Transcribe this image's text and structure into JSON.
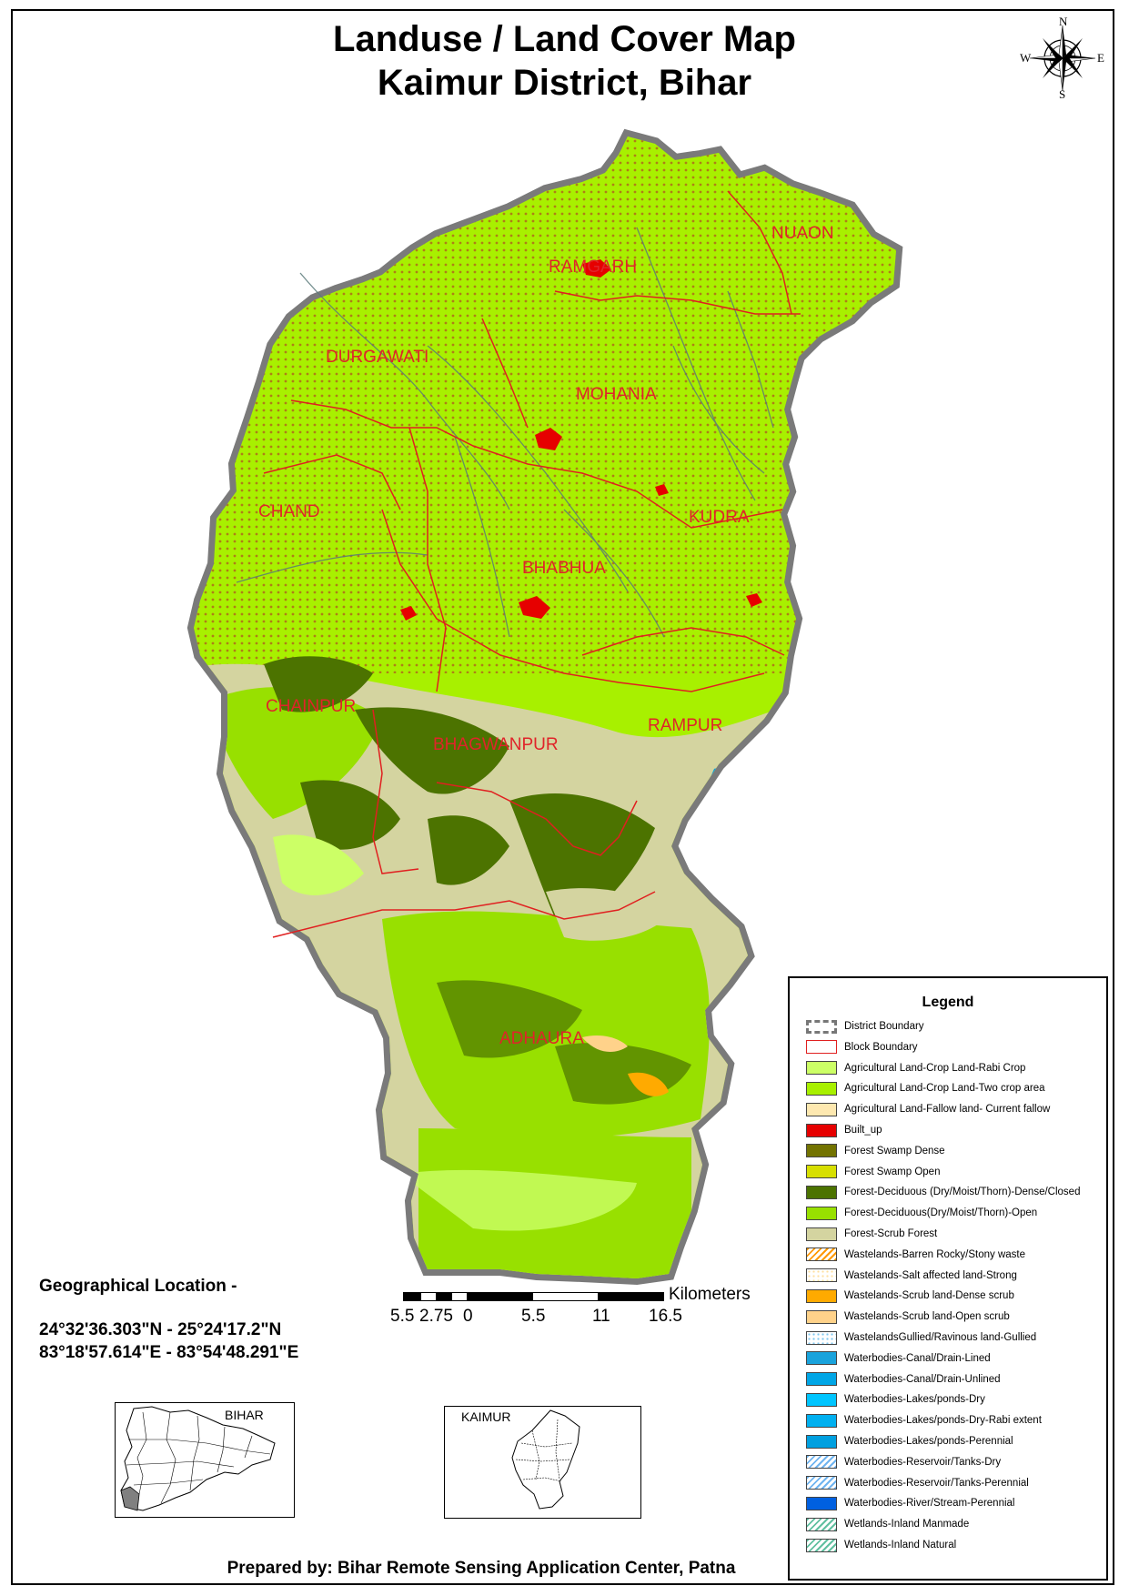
{
  "title": {
    "line1": "Landuse / Land Cover Map",
    "line2": "Kaimur District, Bihar"
  },
  "compass": {
    "n": "N",
    "s": "S",
    "e": "E",
    "w": "W",
    "icon": "compass-rose-icon"
  },
  "blocks": [
    "RAMGARH",
    "NUAON",
    "DURGAWATI",
    "MOHANIA",
    "CHAND",
    "KUDRA",
    "BHABHUA",
    "CHAINPUR",
    "RAMPUR",
    "BHAGWANPUR",
    "ADHAURA"
  ],
  "legend": {
    "title": "Legend",
    "items": [
      {
        "label": "District Boundary",
        "color": "#ffffff",
        "style": "district"
      },
      {
        "label": "Block Boundary",
        "color": "#ffffff",
        "style": "block"
      },
      {
        "label": "Agricultural Land-Crop Land-Rabi Crop",
        "color": "#ccff66",
        "style": "fill"
      },
      {
        "label": "Agricultural Land-Crop Land-Two crop area",
        "color": "#a8f000",
        "style": "fill"
      },
      {
        "label": "Agricultural Land-Fallow land- Current fallow",
        "color": "#fde8b0",
        "style": "fill"
      },
      {
        "label": "Built_up",
        "color": "#e60000",
        "style": "fill"
      },
      {
        "label": "Forest Swamp Dense",
        "color": "#737300",
        "style": "fill"
      },
      {
        "label": "Forest Swamp Open",
        "color": "#d7df00",
        "style": "fill"
      },
      {
        "label": "Forest-Deciduous (Dry/Moist/Thorn)-Dense/Closed",
        "color": "#4c7300",
        "style": "fill"
      },
      {
        "label": "Forest-Deciduous(Dry/Moist/Thorn)-Open",
        "color": "#98e000",
        "style": "fill"
      },
      {
        "label": "Forest-Scrub Forest",
        "color": "#d4d4a0",
        "style": "fill"
      },
      {
        "label": "Wastelands-Barren Rocky/Stony waste",
        "color": "#ff9900",
        "style": "hatch-orange"
      },
      {
        "label": "Wastelands-Salt affected land-Strong",
        "color": "#ffe0a0",
        "style": "dots-orange"
      },
      {
        "label": "Wastelands-Scrub land-Dense scrub",
        "color": "#ffaa00",
        "style": "fill"
      },
      {
        "label": "Wastelands-Scrub land-Open scrub",
        "color": "#ffd28a",
        "style": "fill"
      },
      {
        "label": "WastelandsGullied/Ravinous land-Gullied",
        "color": "#7fc8f0",
        "style": "dots-blue"
      },
      {
        "label": "Waterbodies-Canal/Drain-Lined",
        "color": "#1aa3dc",
        "style": "fill"
      },
      {
        "label": "Waterbodies-Canal/Drain-Unlined",
        "color": "#00a6e6",
        "style": "fill"
      },
      {
        "label": "Waterbodies-Lakes/ponds-Dry",
        "color": "#00c5ff",
        "style": "fill"
      },
      {
        "label": "Waterbodies-Lakes/ponds-Dry-Rabi extent",
        "color": "#00b0f0",
        "style": "fill"
      },
      {
        "label": "Waterbodies-Lakes/ponds-Perennial",
        "color": "#00a0e0",
        "style": "fill"
      },
      {
        "label": "Waterbodies-Reservoir/Tanks-Dry",
        "color": "#6fb4f0",
        "style": "hatch-blue"
      },
      {
        "label": "Waterbodies-Reservoir/Tanks-Perennial",
        "color": "#6fb4f0",
        "style": "hatch-blue"
      },
      {
        "label": "Waterbodies-River/Stream-Perennial",
        "color": "#0060e0",
        "style": "fill"
      },
      {
        "label": "Wetlands-Inland Manmade",
        "color": "#60c0a0",
        "style": "hatch-green"
      },
      {
        "label": "Wetlands-Inland Natural",
        "color": "#60c0a0",
        "style": "hatch-green"
      }
    ]
  },
  "geo": {
    "heading": "Geographical Location -",
    "lat": "24°32'36.303\"N  - 25°24'17.2\"N",
    "lon": "83°18'57.614\"E   - 83°54'48.291\"E"
  },
  "scale": {
    "unit": "Kilometers",
    "ticks": [
      "5.5",
      "2.75",
      "0",
      "5.5",
      "11",
      "16.5"
    ]
  },
  "insets": {
    "bihar": "BIHAR",
    "kaimur": "KAIMUR"
  },
  "footer": "Prepared by: Bihar Remote Sensing Application Center, Patna"
}
